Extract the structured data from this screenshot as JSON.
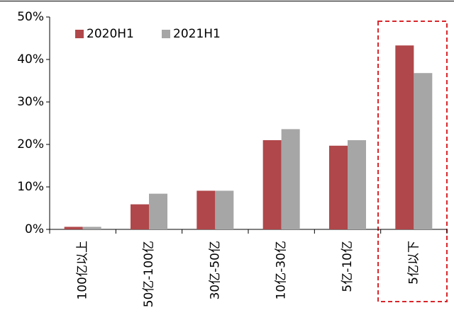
{
  "chart_data": {
    "type": "bar",
    "categories": [
      "100亿以上",
      "50亿-100亿",
      "30亿-50亿",
      "10亿-30亿",
      "5亿-10亿",
      "5亿以下"
    ],
    "series": [
      {
        "name": "2020H1",
        "color": "#b0474a",
        "values": [
          0.6,
          5.9,
          9.1,
          21.0,
          19.7,
          43.3
        ]
      },
      {
        "name": "2021H1",
        "color": "#a6a6a6",
        "values": [
          0.6,
          8.4,
          9.1,
          23.6,
          21.0,
          36.8
        ]
      }
    ],
    "ylim": [
      0,
      50
    ],
    "yticks": [
      {
        "value": 0,
        "label": "0%"
      },
      {
        "value": 10,
        "label": "10%"
      },
      {
        "value": 20,
        "label": "20%"
      },
      {
        "value": 30,
        "label": "30%"
      },
      {
        "value": 40,
        "label": "40%"
      },
      {
        "value": 50,
        "label": "50%"
      }
    ],
    "legend": "top-left"
  }
}
